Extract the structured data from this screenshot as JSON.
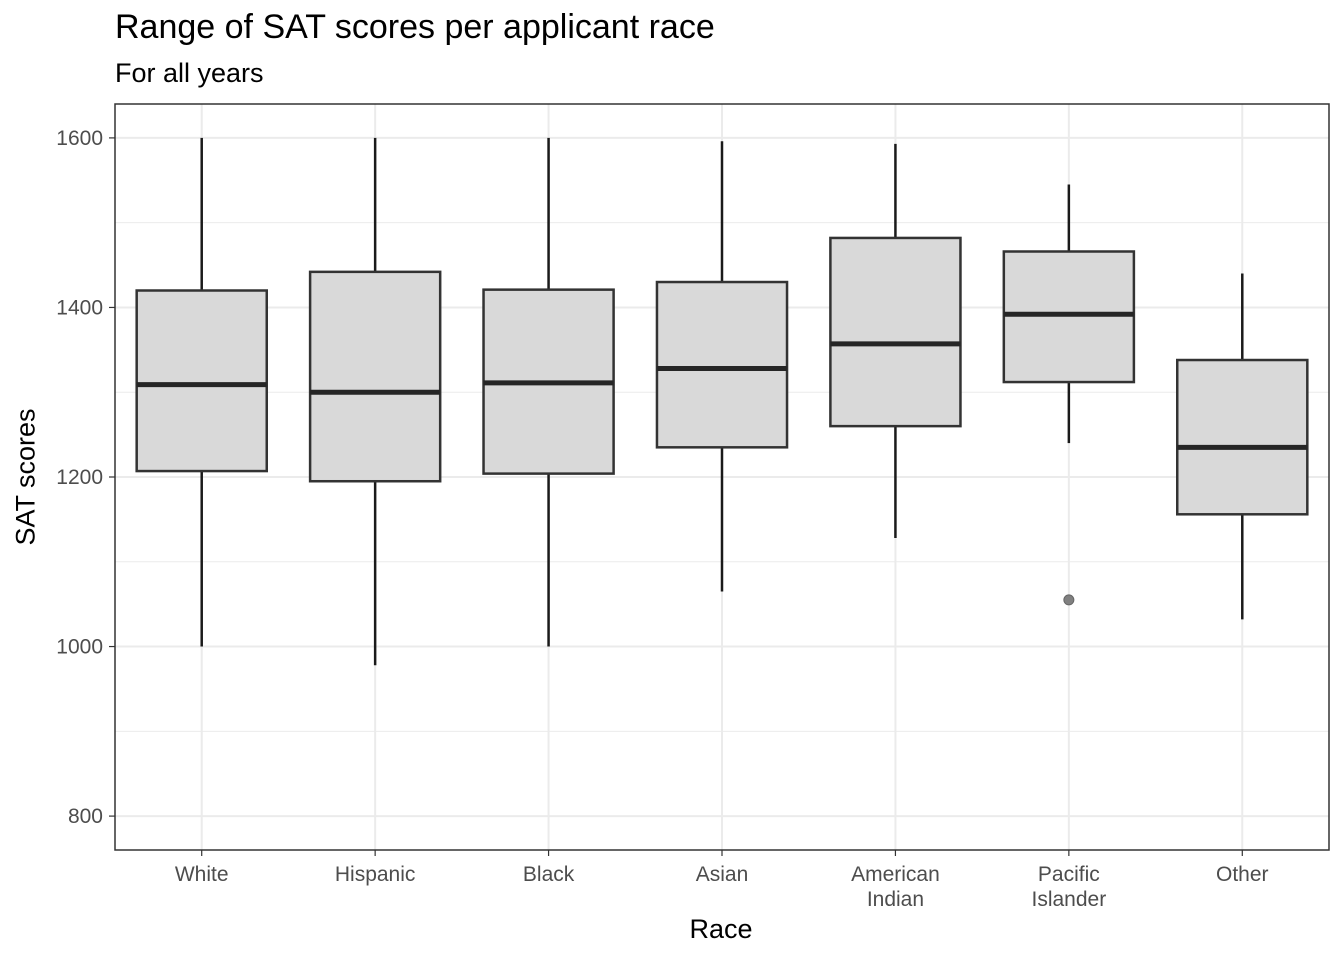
{
  "chart_data": {
    "type": "boxplot",
    "title": "Range of SAT scores per applicant race",
    "subtitle": "For all years",
    "xlabel": "Race",
    "ylabel": "SAT scores",
    "ylim": [
      760,
      1640
    ],
    "yticks": [
      800,
      1000,
      1200,
      1400,
      1600
    ],
    "grid": true,
    "categories": [
      "White",
      "Hispanic",
      "Black",
      "Asian",
      "American\nIndian",
      "Pacific\nIslander",
      "Other"
    ],
    "boxes": [
      {
        "category": "White",
        "min": 1000,
        "q1": 1207,
        "median": 1309,
        "q3": 1420,
        "max": 1600,
        "outliers": []
      },
      {
        "category": "Hispanic",
        "min": 978,
        "q1": 1195,
        "median": 1300,
        "q3": 1442,
        "max": 1600,
        "outliers": []
      },
      {
        "category": "Black",
        "min": 1000,
        "q1": 1204,
        "median": 1311,
        "q3": 1421,
        "max": 1600,
        "outliers": []
      },
      {
        "category": "Asian",
        "min": 1065,
        "q1": 1235,
        "median": 1328,
        "q3": 1430,
        "max": 1596,
        "outliers": []
      },
      {
        "category": "American Indian",
        "min": 1128,
        "q1": 1260,
        "median": 1357,
        "q3": 1482,
        "max": 1593,
        "outliers": []
      },
      {
        "category": "Pacific Islander",
        "min": 1240,
        "q1": 1312,
        "median": 1392,
        "q3": 1466,
        "max": 1545,
        "outliers": [
          1055
        ]
      },
      {
        "category": "Other",
        "min": 1032,
        "q1": 1156,
        "median": 1235,
        "q3": 1338,
        "max": 1440,
        "outliers": []
      }
    ],
    "colors": {
      "box_fill": "#d9d9d9",
      "box_stroke": "#333333",
      "grid": "#ebebeb",
      "outlier": "#808080"
    }
  }
}
